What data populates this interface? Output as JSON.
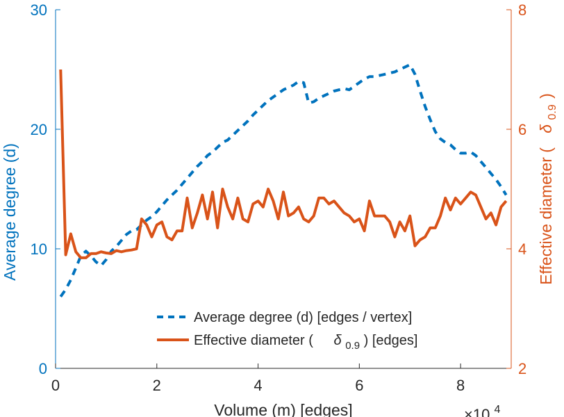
{
  "chart_data": {
    "type": "line",
    "title": "",
    "xlabel": "Volume (m) [edges]",
    "x_multiplier_label": "×10",
    "x_multiplier_exponent": "4",
    "x_scale": 10000,
    "xlim": [
      0,
      90000
    ],
    "x_ticks": [
      0,
      20000,
      40000,
      60000,
      80000
    ],
    "x_tick_labels": [
      "0",
      "2",
      "4",
      "6",
      "8"
    ],
    "left_axis": {
      "label": "Average degree (d)",
      "ylim": [
        0,
        30
      ],
      "ticks": [
        0,
        10,
        20,
        30
      ],
      "tick_labels": [
        "0",
        "10",
        "20",
        "30"
      ],
      "color": "#0072BD"
    },
    "right_axis": {
      "label": "Effective diameter (",
      "label_symbol": "δ",
      "label_subscript": "0.9",
      "label_close": ")",
      "ylim": [
        2,
        8
      ],
      "ticks": [
        2,
        4,
        6,
        8
      ],
      "tick_labels": [
        "2",
        "4",
        "6",
        "8"
      ],
      "color": "#D95319"
    },
    "legend": {
      "position": "bottom-center",
      "entries": [
        {
          "text": "Average degree (d) [edges / vertex]"
        },
        {
          "text_before": "Effective diameter (",
          "symbol": "δ",
          "subscript": "0.9",
          "text_after": ") [edges]"
        }
      ]
    },
    "series": [
      {
        "name": "Average degree (d) [edges / vertex]",
        "axis": "left",
        "style": "dashed",
        "color": "#0072BD",
        "x": [
          1000,
          2000,
          3000,
          4000,
          5000,
          6000,
          7000,
          8000,
          9000,
          10000,
          11000,
          12000,
          13000,
          14000,
          15000,
          16000,
          17000,
          18000,
          19000,
          20000,
          21000,
          22000,
          23000,
          24000,
          25000,
          26000,
          27000,
          28000,
          29000,
          30000,
          31000,
          32000,
          33000,
          34000,
          35000,
          36000,
          37000,
          38000,
          39000,
          40000,
          41000,
          42000,
          43000,
          44000,
          45000,
          46000,
          47000,
          48000,
          49000,
          50000,
          51000,
          52000,
          53000,
          54000,
          55000,
          56000,
          57000,
          58000,
          59000,
          60000,
          61000,
          62000,
          63000,
          64000,
          65000,
          66000,
          67000,
          68000,
          69000,
          70000,
          71000,
          72000,
          73000,
          74000,
          75000,
          76000,
          77000,
          78000,
          79000,
          80000,
          81000,
          82000,
          83000,
          84000,
          85000,
          86000,
          87000,
          88000,
          89000
        ],
        "values": [
          6.0,
          6.6,
          7.4,
          8.4,
          9.4,
          9.8,
          9.4,
          8.9,
          8.6,
          9.1,
          9.8,
          10.2,
          10.7,
          11.2,
          11.5,
          11.6,
          12.0,
          12.4,
          12.7,
          13.1,
          13.6,
          14.1,
          14.5,
          14.9,
          15.4,
          15.9,
          16.4,
          16.9,
          17.3,
          17.8,
          18.1,
          18.5,
          18.9,
          19.1,
          19.5,
          19.9,
          20.3,
          20.7,
          21.2,
          21.6,
          22.0,
          22.4,
          22.7,
          23.0,
          23.3,
          23.5,
          23.7,
          24.0,
          23.9,
          22.2,
          22.3,
          22.6,
          22.8,
          23.0,
          23.2,
          23.3,
          23.4,
          23.3,
          23.6,
          23.9,
          24.2,
          24.4,
          24.4,
          24.5,
          24.6,
          24.7,
          24.8,
          25.0,
          25.2,
          25.4,
          24.6,
          23.2,
          21.9,
          20.8,
          19.8,
          19.2,
          18.9,
          18.7,
          18.3,
          18.0,
          18.0,
          18.1,
          17.8,
          17.3,
          16.8,
          16.3,
          15.8,
          15.2,
          14.5
        ]
      },
      {
        "name": "Effective diameter (δ0.9) [edges]",
        "axis": "right",
        "style": "solid",
        "color": "#D95319",
        "x": [
          1000,
          2000,
          3000,
          4000,
          5000,
          6000,
          7000,
          8000,
          9000,
          10000,
          11000,
          12000,
          13000,
          14000,
          15000,
          16000,
          17000,
          18000,
          19000,
          20000,
          21000,
          22000,
          23000,
          24000,
          25000,
          26000,
          27000,
          28000,
          29000,
          30000,
          31000,
          32000,
          33000,
          34000,
          35000,
          36000,
          37000,
          38000,
          39000,
          40000,
          41000,
          42000,
          43000,
          44000,
          45000,
          46000,
          47000,
          48000,
          49000,
          50000,
          51000,
          52000,
          53000,
          54000,
          55000,
          56000,
          57000,
          58000,
          59000,
          60000,
          61000,
          62000,
          63000,
          64000,
          65000,
          66000,
          67000,
          68000,
          69000,
          70000,
          71000,
          72000,
          73000,
          74000,
          75000,
          76000,
          77000,
          78000,
          79000,
          80000,
          81000,
          82000,
          83000,
          84000,
          85000,
          86000,
          87000,
          88000,
          89000
        ],
        "values": [
          7.0,
          3.9,
          4.25,
          3.95,
          3.85,
          3.85,
          3.92,
          3.92,
          3.95,
          3.93,
          3.92,
          3.97,
          3.95,
          3.97,
          3.98,
          4.0,
          4.5,
          4.4,
          4.2,
          4.4,
          4.45,
          4.2,
          4.15,
          4.3,
          4.3,
          4.85,
          4.35,
          4.6,
          4.9,
          4.5,
          4.95,
          4.35,
          5.0,
          4.7,
          4.5,
          4.85,
          4.5,
          4.45,
          4.75,
          4.8,
          4.7,
          5.0,
          4.8,
          4.5,
          4.95,
          4.55,
          4.6,
          4.7,
          4.5,
          4.45,
          4.55,
          4.85,
          4.85,
          4.75,
          4.8,
          4.7,
          4.6,
          4.55,
          4.45,
          4.5,
          4.3,
          4.8,
          4.55,
          4.55,
          4.55,
          4.45,
          4.2,
          4.45,
          4.3,
          4.55,
          4.05,
          4.15,
          4.2,
          4.35,
          4.35,
          4.55,
          4.85,
          4.65,
          4.85,
          4.75,
          4.85,
          4.95,
          4.9,
          4.7,
          4.5,
          4.6,
          4.4,
          4.7,
          4.8
        ]
      }
    ]
  }
}
